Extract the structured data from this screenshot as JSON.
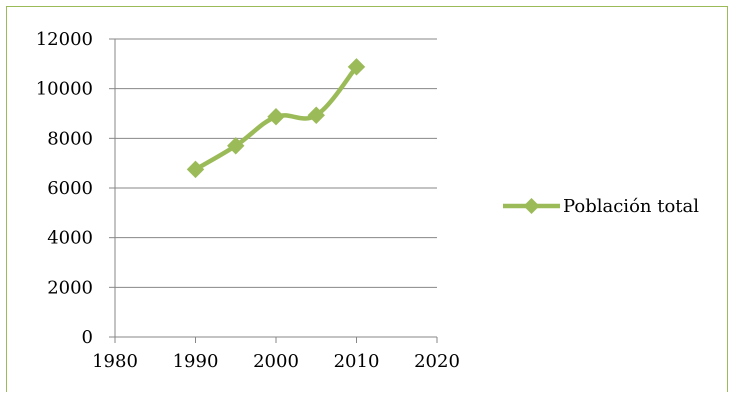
{
  "chart_data": {
    "type": "line",
    "x": [
      1990,
      1995,
      2000,
      2005,
      2010
    ],
    "series": [
      {
        "name": "Población total",
        "values": [
          6750,
          7700,
          8870,
          8930,
          10880
        ]
      }
    ],
    "xlim": [
      1980,
      2020
    ],
    "ylim": [
      0,
      12000
    ],
    "x_ticks": [
      1980,
      1990,
      2000,
      2010,
      2020
    ],
    "y_ticks": [
      0,
      2000,
      4000,
      6000,
      8000,
      10000,
      12000
    ],
    "x_tick_labels": [
      "1980",
      "1990",
      "2000",
      "2010",
      "2020"
    ],
    "y_tick_labels": [
      "0",
      "2000",
      "4000",
      "6000",
      "8000",
      "10000",
      "12000"
    ],
    "grid": "horizontal",
    "legend_position": "right",
    "colors": {
      "series": "#9bbb59",
      "grid": "#878787",
      "frame": "#9bbb59"
    }
  }
}
